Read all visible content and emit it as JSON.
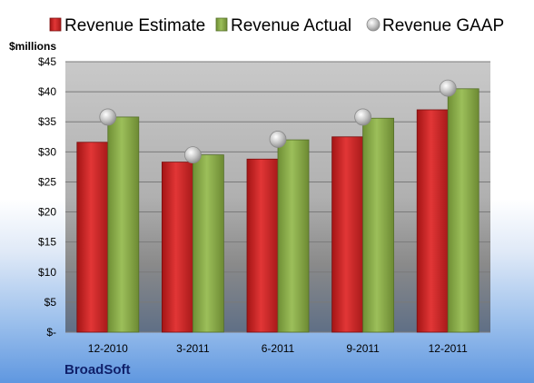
{
  "chart_data": {
    "type": "bar",
    "title": "",
    "unit_label": "$millions",
    "brand": "BroadSoft",
    "categories": [
      "12-2010",
      "3-2011",
      "6-2011",
      "9-2011",
      "12-2011"
    ],
    "series": [
      {
        "name": "Revenue Estimate",
        "kind": "bar",
        "color": "#d42a2a",
        "values": [
          31.6,
          28.3,
          28.8,
          32.5,
          37.0
        ]
      },
      {
        "name": "Revenue Actual",
        "kind": "bar",
        "color": "#8aac4a",
        "values": [
          35.8,
          29.5,
          32.0,
          35.6,
          40.5
        ]
      },
      {
        "name": "Revenue GAAP",
        "kind": "marker",
        "color": "#b8b8b8",
        "values": [
          35.8,
          29.5,
          32.1,
          35.8,
          40.6
        ]
      }
    ],
    "ylim": [
      0,
      45
    ],
    "ytick_labels": [
      "$-",
      "$5",
      "$10",
      "$15",
      "$20",
      "$25",
      "$30",
      "$35",
      "$40",
      "$45"
    ],
    "ytick_values": [
      0,
      5,
      10,
      15,
      20,
      25,
      30,
      35,
      40,
      45
    ],
    "grid": true,
    "legend_position": "top"
  }
}
